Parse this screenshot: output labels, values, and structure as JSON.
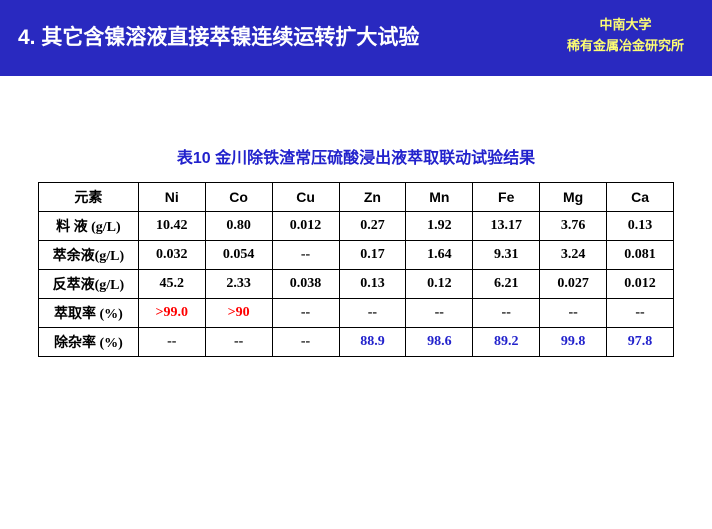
{
  "header": {
    "title": "4. 其它含镍溶液直接萃镍连续运转扩大试验",
    "org_line1": "中南大学",
    "org_line2": "稀有金属冶金研究所"
  },
  "table": {
    "caption": "表10 金川除铁渣常压硫酸浸出液萃取联动试验结果",
    "header_first": "元素",
    "elements": [
      "Ni",
      "Co",
      "Cu",
      "Zn",
      "Mn",
      "Fe",
      "Mg",
      "Ca"
    ],
    "rows": [
      {
        "label": "料 液 (g/L)",
        "cells": [
          {
            "v": "10.42",
            "c": "#000000"
          },
          {
            "v": "0.80",
            "c": "#000000"
          },
          {
            "v": "0.012",
            "c": "#000000"
          },
          {
            "v": "0.27",
            "c": "#000000"
          },
          {
            "v": "1.92",
            "c": "#000000"
          },
          {
            "v": "13.17",
            "c": "#000000"
          },
          {
            "v": "3.76",
            "c": "#000000"
          },
          {
            "v": "0.13",
            "c": "#000000"
          }
        ]
      },
      {
        "label": "萃余液(g/L)",
        "cells": [
          {
            "v": "0.032",
            "c": "#000000"
          },
          {
            "v": "0.054",
            "c": "#000000"
          },
          {
            "v": "--",
            "c": "#000000"
          },
          {
            "v": "0.17",
            "c": "#000000"
          },
          {
            "v": "1.64",
            "c": "#000000"
          },
          {
            "v": "9.31",
            "c": "#000000"
          },
          {
            "v": "3.24",
            "c": "#000000"
          },
          {
            "v": "0.081",
            "c": "#000000"
          }
        ]
      },
      {
        "label": "反萃液(g/L)",
        "cells": [
          {
            "v": "45.2",
            "c": "#000000"
          },
          {
            "v": "2.33",
            "c": "#000000"
          },
          {
            "v": "0.038",
            "c": "#000000"
          },
          {
            "v": "0.13",
            "c": "#000000"
          },
          {
            "v": "0.12",
            "c": "#000000"
          },
          {
            "v": "6.21",
            "c": "#000000"
          },
          {
            "v": "0.027",
            "c": "#000000"
          },
          {
            "v": "0.012",
            "c": "#000000"
          }
        ]
      },
      {
        "label": "萃取率 (%)",
        "cells": [
          {
            "v": ">99.0",
            "c": "#ff0000"
          },
          {
            "v": ">90",
            "c": "#ff0000"
          },
          {
            "v": "--",
            "c": "#000000"
          },
          {
            "v": "--",
            "c": "#000000"
          },
          {
            "v": "--",
            "c": "#000000"
          },
          {
            "v": "--",
            "c": "#000000"
          },
          {
            "v": "--",
            "c": "#000000"
          },
          {
            "v": "--",
            "c": "#000000"
          }
        ]
      },
      {
        "label": "除杂率 (%)",
        "cells": [
          {
            "v": "--",
            "c": "#000000"
          },
          {
            "v": "--",
            "c": "#000000"
          },
          {
            "v": "--",
            "c": "#000000"
          },
          {
            "v": "88.9",
            "c": "#2222cc"
          },
          {
            "v": "98.6",
            "c": "#2222cc"
          },
          {
            "v": "89.2",
            "c": "#2222cc"
          },
          {
            "v": "99.8",
            "c": "#2222cc"
          },
          {
            "v": "97.8",
            "c": "#2222cc"
          }
        ]
      }
    ]
  },
  "colors": {
    "header_bg": "#2929c0",
    "header_right_text": "#fdfd73",
    "caption_text": "#2222cc",
    "highlight_red": "#ff0000",
    "highlight_blue": "#2222cc",
    "background": "#ffffff"
  }
}
